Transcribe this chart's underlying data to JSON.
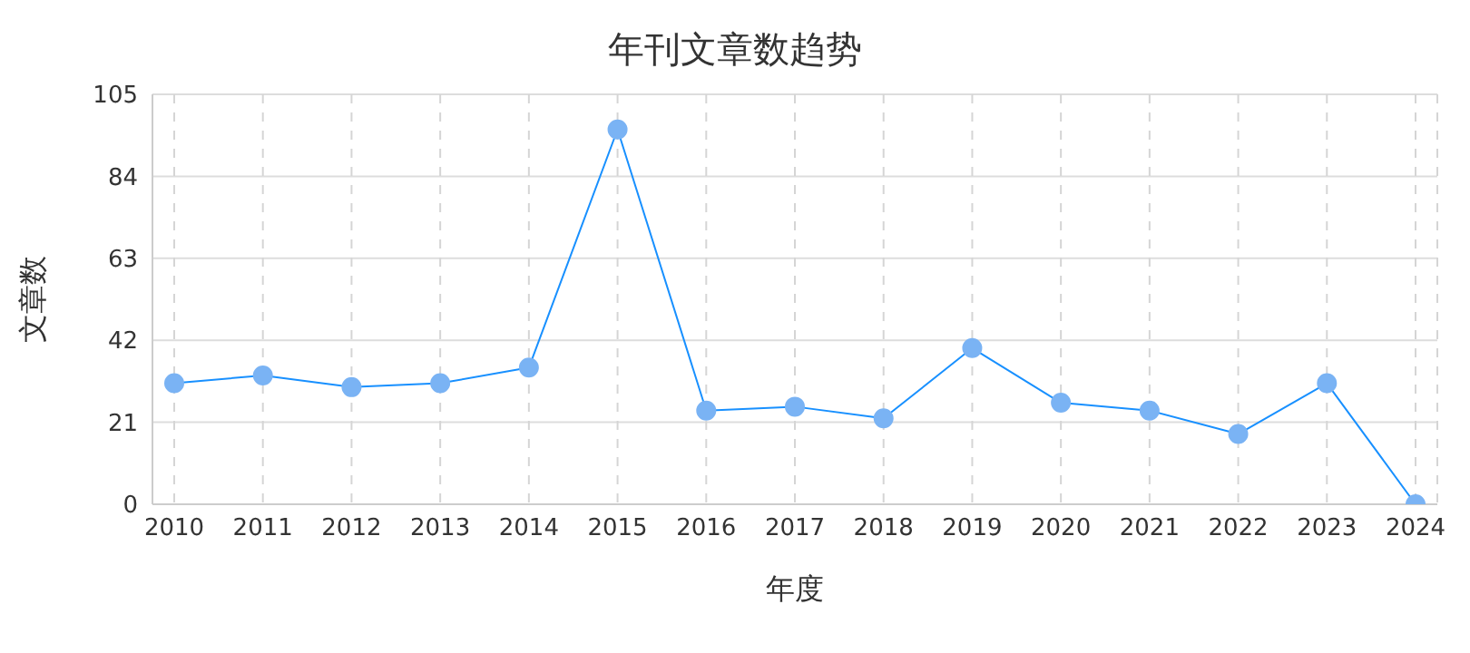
{
  "chart_data": {
    "type": "line",
    "title": "年刊文章数趋势",
    "xlabel": "年度",
    "ylabel": "文章数",
    "categories": [
      "2010",
      "2011",
      "2012",
      "2013",
      "2014",
      "2015",
      "2016",
      "2017",
      "2018",
      "2019",
      "2020",
      "2021",
      "2022",
      "2023",
      "2024"
    ],
    "series": [
      {
        "color": "#1890ff",
        "values": [
          31,
          33,
          30,
          31,
          35,
          96,
          24,
          25,
          22,
          40,
          26,
          24,
          18,
          31,
          0
        ]
      }
    ],
    "ylim": [
      0,
      105
    ],
    "yticks": [
      0,
      21,
      42,
      63,
      84,
      105
    ],
    "grid": true,
    "marker": "circle",
    "line_style": "solid",
    "legend": false
  }
}
